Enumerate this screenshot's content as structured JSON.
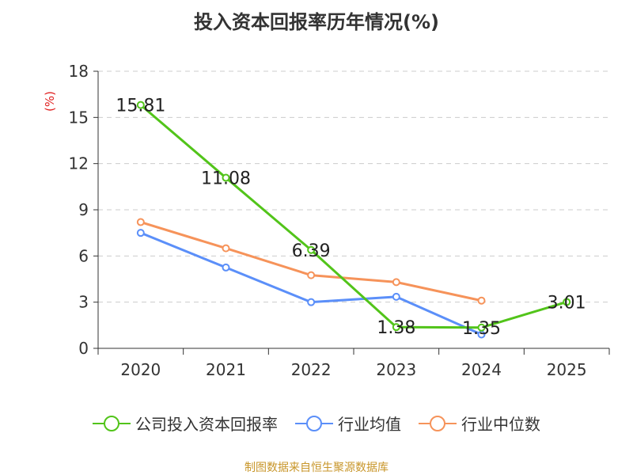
{
  "title": "投入资本回报率历年情况(%)",
  "footer": "制图数据来自恒生聚源数据库",
  "chart_data": {
    "type": "line",
    "title": "投入资本回报率历年情况(%)",
    "ylabel": "(%)",
    "xlabel": "",
    "categories": [
      "2020",
      "2021",
      "2022",
      "2023",
      "2024",
      "2025"
    ],
    "ylim": [
      0,
      18
    ],
    "yticks": [
      0,
      3,
      6,
      9,
      12,
      15,
      18
    ],
    "grid": "dashed horizontal",
    "legend_position": "bottom",
    "series": [
      {
        "name": "公司投入资本回报率",
        "color": "#52c41a",
        "values": [
          15.81,
          11.08,
          6.39,
          1.38,
          1.35,
          3.01
        ],
        "labels": [
          "15.81",
          "11.08",
          "6.39",
          "1.38",
          "1.35",
          "3.01"
        ]
      },
      {
        "name": "行业均值",
        "color": "#5b8ff9",
        "values": [
          7.5,
          5.25,
          3.0,
          3.35,
          0.9,
          null
        ]
      },
      {
        "name": "行业中位数",
        "color": "#f6935a",
        "values": [
          8.2,
          6.5,
          4.75,
          4.3,
          3.1,
          null
        ]
      }
    ]
  },
  "legend": [
    {
      "label": "公司投入资本回报率",
      "color": "#52c41a"
    },
    {
      "label": "行业均值",
      "color": "#5b8ff9"
    },
    {
      "label": "行业中位数",
      "color": "#f6935a"
    }
  ]
}
